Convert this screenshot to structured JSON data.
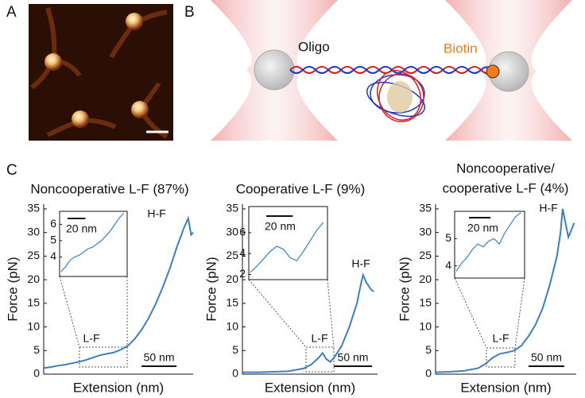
{
  "panel_labels": [
    "A",
    "B",
    "C"
  ],
  "diagram_labels": {
    "oligo": "Oligo",
    "biotin": "Biotin"
  },
  "chart_data": [
    {
      "type": "line",
      "title": "Noncooperative L-F (87%)",
      "x_label": "Extension (nm)",
      "y_label": "Force (pN)",
      "color": "#3a7fc1",
      "xlim": [
        0,
        213
      ],
      "ylim": [
        0,
        36
      ],
      "yticks": [
        0,
        5,
        10,
        15,
        20,
        25,
        30,
        35
      ],
      "x": [
        0,
        10,
        20,
        30,
        40,
        50,
        60,
        70,
        80,
        90,
        100,
        110,
        120,
        130,
        140,
        150,
        160,
        170,
        180,
        190,
        200,
        206,
        210,
        213
      ],
      "values": [
        1.3,
        1.5,
        1.8,
        2.0,
        2.3,
        2.6,
        3.0,
        3.5,
        4.0,
        4.3,
        4.6,
        5.2,
        6.0,
        7.5,
        9.5,
        12,
        15,
        18.5,
        22.5,
        27,
        31,
        33,
        29.5,
        30
      ],
      "annotations": [
        "L-F",
        "H-F"
      ],
      "scale_bar": {
        "label": "50 nm",
        "length": 50
      },
      "inset": {
        "xlim": [
          0,
          72
        ],
        "ylim": [
          2.8,
          6.8
        ],
        "yticks": [
          4,
          5,
          6
        ],
        "x": [
          0,
          5,
          10,
          15,
          20,
          25,
          30,
          35,
          40,
          45,
          50,
          55,
          60,
          65,
          70
        ],
        "values": [
          3.1,
          3.4,
          3.8,
          4.0,
          4.1,
          4.3,
          4.5,
          4.6,
          4.8,
          5.0,
          5.3,
          5.6,
          6.0,
          6.4,
          6.7
        ],
        "scale_bar": {
          "label": "20 nm",
          "length": 20
        }
      }
    },
    {
      "type": "line",
      "title": "Cooperative L-F (9%)",
      "x_label": "Extension (nm)",
      "y_label": "Force (pN)",
      "color": "#3a7fc1",
      "xlim": [
        0,
        177
      ],
      "ylim": [
        0,
        36
      ],
      "yticks": [
        0,
        5,
        10,
        15,
        20,
        25,
        30,
        35
      ],
      "x": [
        0,
        20,
        40,
        60,
        80,
        90,
        100,
        105,
        110,
        115,
        120,
        130,
        140,
        150,
        155,
        158,
        162,
        168,
        172
      ],
      "values": [
        0.4,
        0.4,
        0.5,
        0.6,
        1.2,
        2.0,
        3.5,
        4.5,
        3.2,
        2.6,
        3.5,
        6,
        10,
        15,
        19,
        21,
        19.5,
        18,
        17.5
      ],
      "annotations": [
        "L-F",
        "H-F"
      ],
      "scale_bar": {
        "label": "50 nm",
        "length": 50
      },
      "inset": {
        "xlim": [
          0,
          57
        ],
        "ylim": [
          1.5,
          8.5
        ],
        "yticks": [
          2,
          4,
          6
        ],
        "x": [
          0,
          5,
          10,
          15,
          20,
          25,
          30,
          35,
          40,
          45,
          50,
          55
        ],
        "values": [
          2.2,
          2.8,
          3.5,
          4.2,
          4.7,
          4.4,
          3.6,
          3.3,
          4.2,
          5.2,
          6.2,
          7.0
        ],
        "scale_bar": {
          "label": "20 nm",
          "length": 20
        }
      }
    },
    {
      "type": "line",
      "title": [
        "Noncooperative/",
        "cooperative L-F (4%)"
      ],
      "x_label": "Extension (nm)",
      "y_label": "Force (pN)",
      "color": "#3a7fc1",
      "xlim": [
        0,
        197
      ],
      "ylim": [
        0,
        36
      ],
      "yticks": [
        0,
        5,
        10,
        15,
        20,
        25,
        30,
        35
      ],
      "x": [
        0,
        20,
        40,
        60,
        70,
        80,
        90,
        100,
        110,
        120,
        130,
        140,
        150,
        160,
        170,
        175,
        178,
        182,
        186,
        190,
        194
      ],
      "values": [
        0.4,
        0.5,
        0.7,
        1.3,
        2.2,
        3.5,
        4.3,
        4.6,
        5.0,
        6.0,
        8.0,
        10.5,
        14,
        19,
        25,
        30,
        35,
        32,
        29,
        30.5,
        32
      ],
      "annotations": [
        "L-F",
        "H-F"
      ],
      "scale_bar": {
        "label": "50 nm",
        "length": 50
      },
      "inset": {
        "xlim": [
          0,
          62
        ],
        "ylim": [
          3.55,
          6
        ],
        "yticks": [
          4,
          5
        ],
        "x": [
          0,
          5,
          10,
          15,
          20,
          25,
          30,
          35,
          40,
          45,
          50,
          55,
          60
        ],
        "values": [
          3.8,
          4.1,
          4.3,
          4.6,
          4.8,
          4.7,
          4.9,
          5.0,
          4.8,
          5.2,
          5.5,
          5.8,
          5.95
        ],
        "scale_bar": {
          "label": "20 nm",
          "length": 20
        }
      }
    }
  ]
}
